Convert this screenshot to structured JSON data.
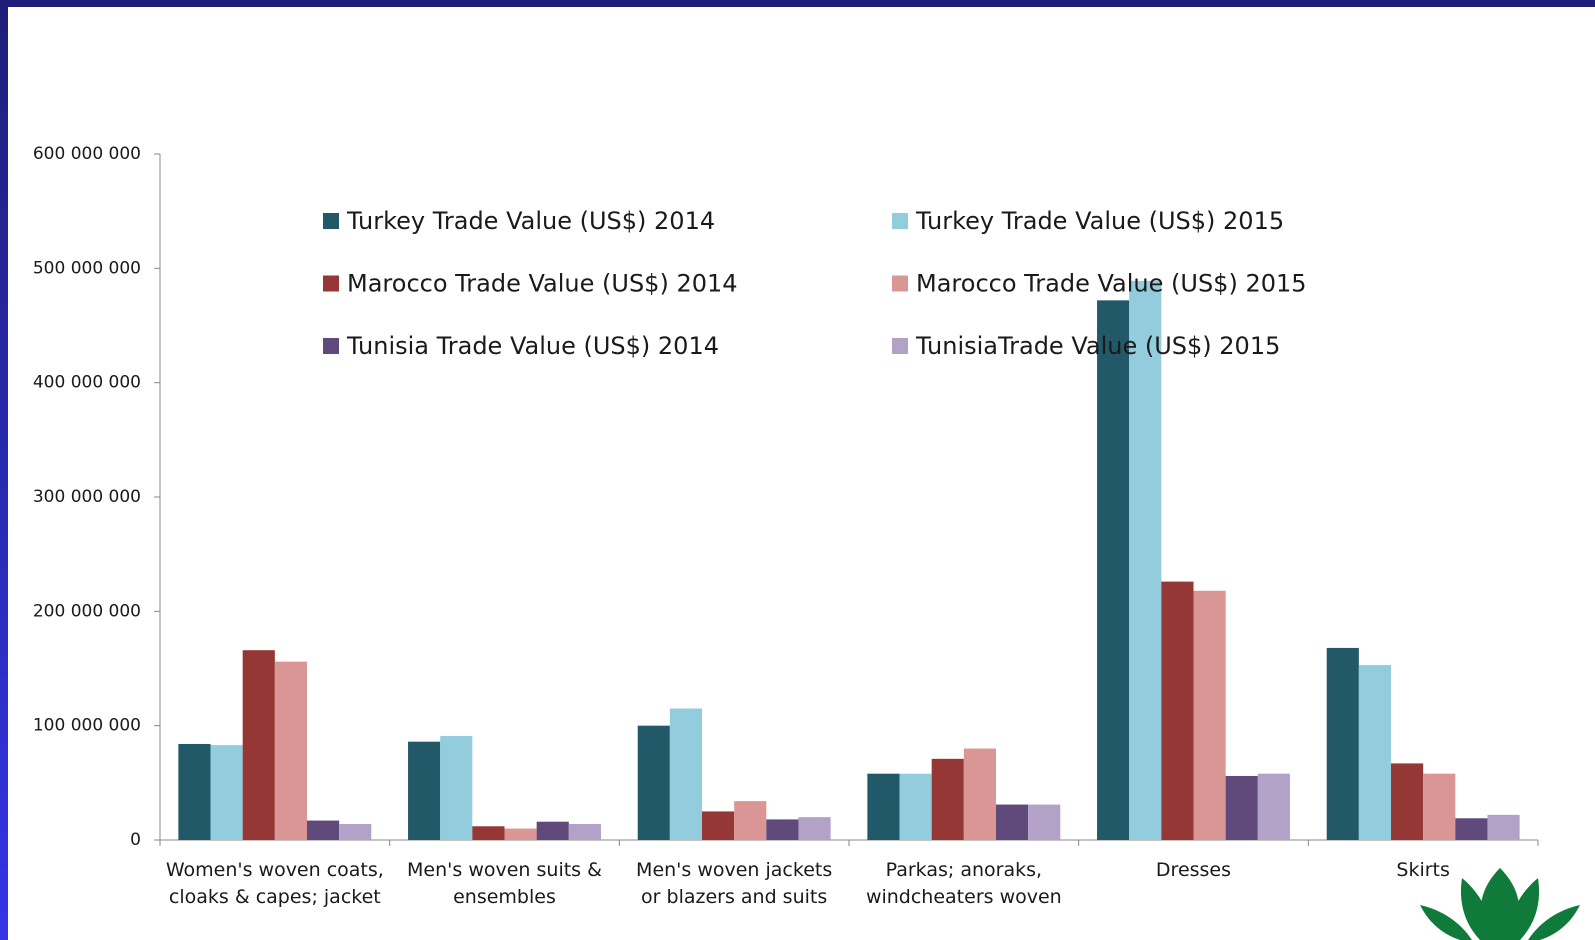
{
  "chart_data": {
    "type": "bar",
    "categories": [
      "Women's woven coats, cloaks & capes; jacket",
      "Men's woven suits & ensembles",
      "Men's woven jackets or blazers and suits",
      "Parkas; anoraks, windcheaters woven",
      "Dresses",
      "Skirts"
    ],
    "series": [
      {
        "name": "Turkey Trade Value (US$)  2014",
        "color": "#215968",
        "values": [
          84000000,
          86000000,
          100000000,
          58000000,
          472000000,
          168000000
        ]
      },
      {
        "name": "Turkey Trade Value (US$) 2015",
        "color": "#93cddd",
        "values": [
          83000000,
          91000000,
          115000000,
          58000000,
          489000000,
          153000000
        ]
      },
      {
        "name": "Marocco Trade Value (US$) 2014",
        "color": "#953735",
        "values": [
          166000000,
          12000000,
          25000000,
          71000000,
          226000000,
          67000000
        ]
      },
      {
        "name": "Marocco Trade Value (US$) 2015",
        "color": "#d99694",
        "values": [
          156000000,
          10000000,
          34000000,
          80000000,
          218000000,
          58000000
        ]
      },
      {
        "name": "Tunisia Trade Value (US$)  2014",
        "color": "#604a7b",
        "values": [
          17000000,
          16000000,
          18000000,
          31000000,
          56000000,
          19000000
        ]
      },
      {
        "name": "TunisiaTrade Value (US$) 2015",
        "color": "#b3a2c7",
        "values": [
          14000000,
          14000000,
          20000000,
          31000000,
          58000000,
          22000000
        ]
      }
    ],
    "ylim": [
      0,
      600000000
    ],
    "yticks": [
      0,
      {
        "value": 100000000,
        "label": "100 000 000"
      },
      {
        "value": 200000000,
        "label": "200 000 000"
      },
      {
        "value": 300000000,
        "label": "300 000 000"
      },
      {
        "value": 400000000,
        "label": "400 000 000"
      },
      {
        "value": 500000000,
        "label": "500 000 000"
      },
      {
        "value": 600000000,
        "label": "600 000 000"
      }
    ],
    "grid": false
  }
}
